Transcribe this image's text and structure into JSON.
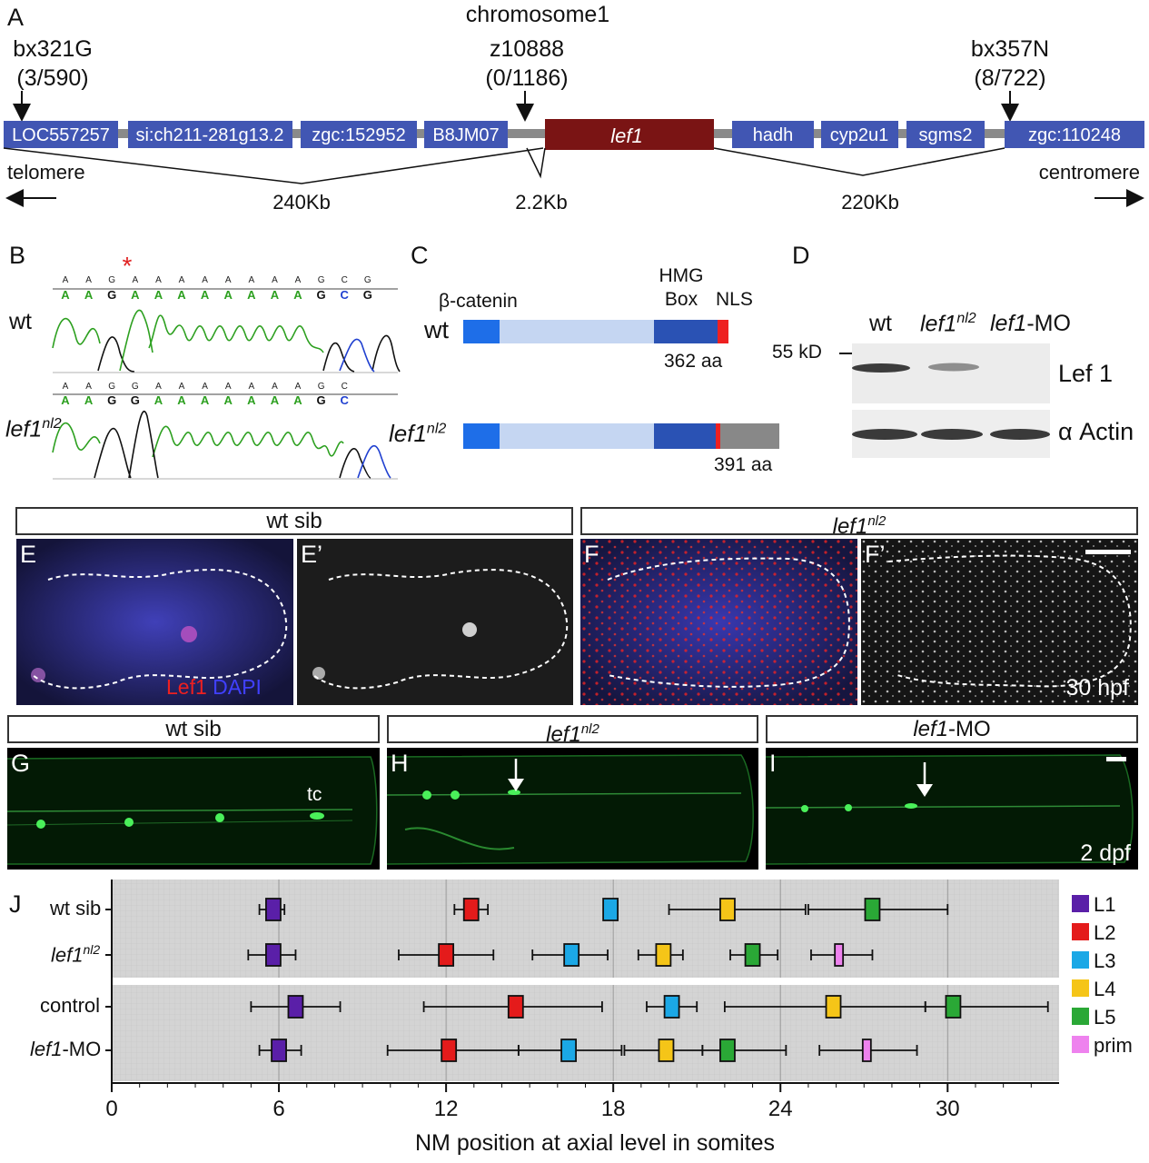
{
  "panelA": {
    "letter": "A",
    "chromosome": "chromosome1",
    "markers": [
      {
        "name": "bx321G",
        "count": "(3/590)"
      },
      {
        "name": "z10888",
        "count": "(0/1186)"
      },
      {
        "name": "bx357N",
        "count": "(8/722)"
      }
    ],
    "genes": [
      "LOC557257",
      "si:ch211-281g13.2",
      "zgc:152952",
      "B8JM07",
      "lef1",
      "hadh",
      "cyp2u1",
      "sgms2",
      "zgc:110248"
    ],
    "telomere": "telomere",
    "centromere": "centromere",
    "distances": [
      "240Kb",
      "2.2Kb",
      "220Kb"
    ],
    "colors": {
      "gene": "#4156b3",
      "lef1": "#7a1414",
      "line": "#8a8a8a"
    }
  },
  "panelB": {
    "letter": "B",
    "wt_label": "wt",
    "mut_label": "lef1",
    "mut_sup": "nl2",
    "star": "*",
    "wt_small": [
      "A",
      "A",
      "G",
      "A",
      "A",
      "A",
      "A",
      "A",
      "A",
      "A",
      "A",
      "G",
      "C",
      "G"
    ],
    "wt_big": [
      "A",
      "A",
      "G",
      "A",
      "A",
      "A",
      "A",
      "A",
      "A",
      "A",
      "A",
      "G",
      "C",
      "G"
    ],
    "mut_small": [
      "A",
      "A",
      "G",
      "G",
      "A",
      "A",
      "A",
      "A",
      "A",
      "A",
      "A",
      "G",
      "C"
    ],
    "mut_big": [
      "A",
      "A",
      "G",
      "G",
      "A",
      "A",
      "A",
      "A",
      "A",
      "A",
      "A",
      "G",
      "C"
    ]
  },
  "panelC": {
    "letter": "C",
    "beta": "β-catenin",
    "hmg": "HMG",
    "box": "Box",
    "nls": "NLS",
    "wt_label": "wt",
    "mut_label": "lef1",
    "mut_sup": "nl2",
    "wt_len": "362 aa",
    "mut_len": "391 aa"
  },
  "panelD": {
    "letter": "D",
    "lanes": {
      "wt": "wt",
      "mut": "lef1",
      "mut_sup": "nl2",
      "mo": "lef1",
      "mo_suffix": "-MO"
    },
    "marker": "55 kD",
    "bands": [
      "Lef 1",
      "α Actin"
    ]
  },
  "panelEF": {
    "header_wt": "wt sib",
    "header_mut": "lef1",
    "header_mut_sup": "nl2",
    "letters": [
      "E",
      "E’",
      "F",
      "F’"
    ],
    "stain1": "Lef1",
    "stain2": "DAPI",
    "time": "30 hpf"
  },
  "panelGHI": {
    "headers": {
      "wt": "wt sib",
      "mut": "lef1",
      "mut_sup": "nl2",
      "mo": "lef1",
      "mo_suffix": "-MO"
    },
    "letters": [
      "G",
      "H",
      "I"
    ],
    "tc": "tc",
    "time": "2 dpf"
  },
  "chart_data": {
    "type": "scatter",
    "panel": "J",
    "xlabel": "NM position at axial level in somites",
    "xlim": [
      0,
      34
    ],
    "xticks": [
      0,
      6,
      12,
      18,
      24,
      30
    ],
    "row_labels": [
      {
        "text": "wt sib"
      },
      {
        "text": "lef1",
        "sup": "nl2"
      },
      {
        "text": "control"
      },
      {
        "text": "lef1",
        "suffix": "-MO"
      }
    ],
    "legend": [
      {
        "name": "L1",
        "color": "#5a1fa8"
      },
      {
        "name": "L2",
        "color": "#e41b1b"
      },
      {
        "name": "L3",
        "color": "#1ba8e6"
      },
      {
        "name": "L4",
        "color": "#f5c518"
      },
      {
        "name": "L5",
        "color": "#2aa836"
      },
      {
        "name": "prim",
        "color": "#ee82ee"
      }
    ],
    "series": [
      {
        "row": 0,
        "points": [
          {
            "label": "L1",
            "mean": 5.8,
            "lo": 5.3,
            "hi": 6.2
          },
          {
            "label": "L2",
            "mean": 12.9,
            "lo": 12.3,
            "hi": 13.5
          },
          {
            "label": "L3",
            "mean": 17.9,
            "lo": 17.7,
            "hi": 18.1
          },
          {
            "label": "L4",
            "mean": 22.1,
            "lo": 20.0,
            "hi": 24.9
          },
          {
            "label": "L5",
            "mean": 27.3,
            "lo": 25.0,
            "hi": 30.0
          }
        ]
      },
      {
        "row": 1,
        "points": [
          {
            "label": "L1",
            "mean": 5.8,
            "lo": 4.9,
            "hi": 6.6
          },
          {
            "label": "L2",
            "mean": 12.0,
            "lo": 10.3,
            "hi": 13.7
          },
          {
            "label": "L3",
            "mean": 16.5,
            "lo": 15.1,
            "hi": 17.8
          },
          {
            "label": "L4",
            "mean": 19.8,
            "lo": 18.9,
            "hi": 20.5
          },
          {
            "label": "L5",
            "mean": 23.0,
            "lo": 22.2,
            "hi": 23.9
          },
          {
            "label": "prim",
            "mean": 26.1,
            "lo": 25.1,
            "hi": 27.3
          }
        ]
      },
      {
        "row": 2,
        "points": [
          {
            "label": "L1",
            "mean": 6.6,
            "lo": 5.0,
            "hi": 8.2
          },
          {
            "label": "L2",
            "mean": 14.5,
            "lo": 11.2,
            "hi": 17.6
          },
          {
            "label": "L3",
            "mean": 20.1,
            "lo": 19.2,
            "hi": 21.0
          },
          {
            "label": "L4",
            "mean": 25.9,
            "lo": 22.0,
            "hi": 29.2
          },
          {
            "label": "L5",
            "mean": 30.2,
            "lo": 29.2,
            "hi": 33.6
          }
        ]
      },
      {
        "row": 3,
        "points": [
          {
            "label": "L1",
            "mean": 6.0,
            "lo": 5.3,
            "hi": 6.8
          },
          {
            "label": "L2",
            "mean": 12.1,
            "lo": 9.9,
            "hi": 14.6
          },
          {
            "label": "L3",
            "mean": 16.4,
            "lo": 14.6,
            "hi": 18.3
          },
          {
            "label": "L4",
            "mean": 19.9,
            "lo": 18.4,
            "hi": 21.2
          },
          {
            "label": "L5",
            "mean": 22.1,
            "lo": 21.2,
            "hi": 24.2
          },
          {
            "label": "prim",
            "mean": 27.1,
            "lo": 25.4,
            "hi": 28.9
          }
        ]
      }
    ]
  }
}
